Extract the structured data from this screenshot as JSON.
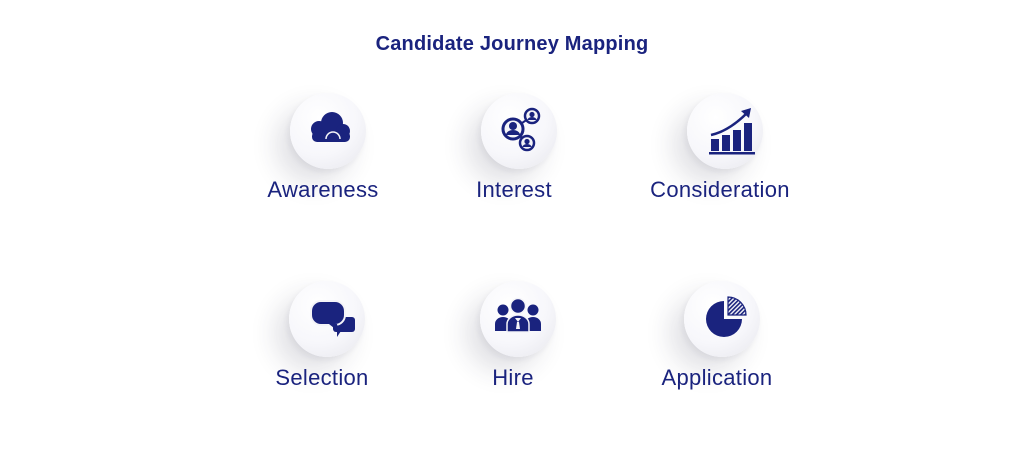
{
  "title": "Candidate Journey Mapping",
  "colors": {
    "primary": "#1a237e",
    "background": "#ffffff"
  },
  "stages": [
    {
      "label": "Awareness",
      "icon": "cloud-icon"
    },
    {
      "label": "Interest",
      "icon": "network-icon"
    },
    {
      "label": "Consideration",
      "icon": "growth-chart-icon"
    },
    {
      "label": "Selection",
      "icon": "chat-bubbles-icon"
    },
    {
      "label": "Hire",
      "icon": "team-icon"
    },
    {
      "label": "Application",
      "icon": "pie-chart-icon"
    }
  ]
}
